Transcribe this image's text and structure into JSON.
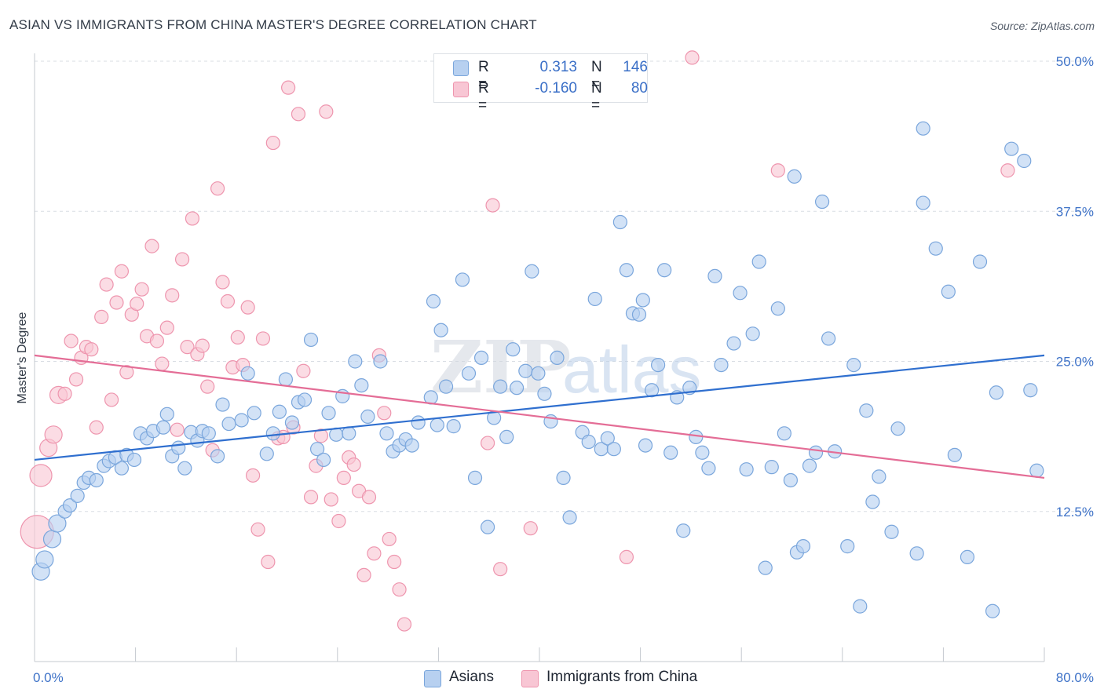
{
  "title": "ASIAN VS IMMIGRANTS FROM CHINA MASTER'S DEGREE CORRELATION CHART",
  "source": "Source: ZipAtlas.com",
  "watermark": {
    "zip": "ZIP",
    "atlas": "atlas"
  },
  "colors": {
    "blue_fill": "#b7d0f0",
    "blue_stroke": "#7aa6dc",
    "blue_line": "#2f6fcf",
    "pink_fill": "#f8c6d4",
    "pink_stroke": "#ee95ae",
    "pink_line": "#e46d96",
    "tick_text": "#3f73c8",
    "grid": "#d9dde3"
  },
  "legend": {
    "rows": [
      {
        "label": "R =",
        "r": "0.313",
        "n_label": "N =",
        "n": "146",
        "swatch": "blue"
      },
      {
        "label": "R =",
        "r": "-0.160",
        "n_label": "N =",
        "n": "80",
        "swatch": "pink"
      }
    ]
  },
  "bottom_legend": [
    {
      "label": "Asians",
      "swatch": "blue"
    },
    {
      "label": "Immigrants from China",
      "swatch": "pink"
    }
  ],
  "chart_data": {
    "type": "scatter",
    "title": "ASIAN VS IMMIGRANTS FROM CHINA MASTER'S DEGREE CORRELATION CHART",
    "xlabel": "",
    "ylabel": "Master's Degree",
    "xlim": [
      0,
      80
    ],
    "ylim": [
      0,
      50
    ],
    "x_tick_labels": [
      {
        "value": 0,
        "label": "0.0%"
      },
      {
        "value": 80,
        "label": "80.0%"
      }
    ],
    "y_tick_labels": [
      {
        "value": 12.5,
        "label": "12.5%"
      },
      {
        "value": 25,
        "label": "25.0%"
      },
      {
        "value": 37.5,
        "label": "37.5%"
      },
      {
        "value": 50,
        "label": "50.0%"
      }
    ],
    "grid": "horizontal dashed",
    "series": [
      {
        "name": "Asians",
        "color": "#b7d0f0",
        "trend": {
          "x": [
            0,
            80
          ],
          "y": [
            16.8,
            25.5
          ]
        },
        "points": [
          [
            0.5,
            7.5
          ],
          [
            0.8,
            8.5
          ],
          [
            1.4,
            10.2
          ],
          [
            1.8,
            11.5
          ],
          [
            2.4,
            12.5
          ],
          [
            2.8,
            13
          ],
          [
            3.4,
            13.8
          ],
          [
            3.9,
            14.9
          ],
          [
            4.3,
            15.3
          ],
          [
            4.9,
            15.1
          ],
          [
            5.5,
            16.3
          ],
          [
            5.9,
            16.7
          ],
          [
            6.4,
            17
          ],
          [
            6.9,
            16.1
          ],
          [
            7.3,
            17.2
          ],
          [
            7.9,
            16.8
          ],
          [
            8.4,
            19
          ],
          [
            8.9,
            18.6
          ],
          [
            9.4,
            19.2
          ],
          [
            10.2,
            19.5
          ],
          [
            10.5,
            20.6
          ],
          [
            10.9,
            17.1
          ],
          [
            11.4,
            17.8
          ],
          [
            11.9,
            16.1
          ],
          [
            12.4,
            19.1
          ],
          [
            12.9,
            18.4
          ],
          [
            13.3,
            19.2
          ],
          [
            13.8,
            19
          ],
          [
            14.5,
            17.1
          ],
          [
            14.9,
            21.4
          ],
          [
            15.4,
            19.8
          ],
          [
            16.4,
            20.1
          ],
          [
            16.9,
            24
          ],
          [
            17.4,
            20.7
          ],
          [
            18.4,
            17.3
          ],
          [
            18.9,
            19
          ],
          [
            19.4,
            20.8
          ],
          [
            19.9,
            23.5
          ],
          [
            20.4,
            19.9
          ],
          [
            20.9,
            21.6
          ],
          [
            21.4,
            21.8
          ],
          [
            21.9,
            26.8
          ],
          [
            22.4,
            17.7
          ],
          [
            22.9,
            16.8
          ],
          [
            23.3,
            20.7
          ],
          [
            23.9,
            18.9
          ],
          [
            24.4,
            22.1
          ],
          [
            24.9,
            19
          ],
          [
            25.4,
            25
          ],
          [
            25.9,
            23
          ],
          [
            26.4,
            20.4
          ],
          [
            27.4,
            25
          ],
          [
            27.9,
            19
          ],
          [
            28.4,
            17.5
          ],
          [
            28.9,
            18
          ],
          [
            29.4,
            18.5
          ],
          [
            29.9,
            18
          ],
          [
            30.4,
            19.9
          ],
          [
            31.4,
            22
          ],
          [
            31.9,
            19.7
          ],
          [
            31.6,
            30
          ],
          [
            32.2,
            27.6
          ],
          [
            32.6,
            22.9
          ],
          [
            33.2,
            19.6
          ],
          [
            33.9,
            31.8
          ],
          [
            34.4,
            24
          ],
          [
            34.9,
            15.3
          ],
          [
            35.4,
            25.3
          ],
          [
            35.9,
            11.2
          ],
          [
            36.4,
            20.3
          ],
          [
            36.9,
            22.9
          ],
          [
            37.4,
            18.7
          ],
          [
            37.9,
            26
          ],
          [
            38.2,
            22.8
          ],
          [
            38.9,
            24.2
          ],
          [
            39.4,
            32.5
          ],
          [
            39.9,
            24
          ],
          [
            40.4,
            22.3
          ],
          [
            40.9,
            20
          ],
          [
            41.4,
            25.3
          ],
          [
            41.9,
            15.3
          ],
          [
            42.4,
            12
          ],
          [
            43.4,
            19.1
          ],
          [
            43.9,
            18.3
          ],
          [
            44.4,
            30.2
          ],
          [
            44.9,
            17.7
          ],
          [
            45.4,
            18.6
          ],
          [
            45.9,
            17.7
          ],
          [
            46.4,
            36.6
          ],
          [
            46.9,
            32.6
          ],
          [
            47.4,
            29
          ],
          [
            47.9,
            28.9
          ],
          [
            48.4,
            18
          ],
          [
            48.9,
            22.6
          ],
          [
            49.4,
            24.7
          ],
          [
            49.9,
            32.6
          ],
          [
            50.4,
            17.4
          ],
          [
            50.9,
            22
          ],
          [
            51.4,
            10.9
          ],
          [
            51.9,
            22.8
          ],
          [
            52.4,
            18.7
          ],
          [
            52.9,
            17.4
          ],
          [
            53.4,
            16.1
          ],
          [
            53.9,
            32.1
          ],
          [
            54.4,
            24.7
          ],
          [
            55.4,
            26.5
          ],
          [
            55.9,
            30.7
          ],
          [
            56.4,
            16
          ],
          [
            56.9,
            27.3
          ],
          [
            57.4,
            33.3
          ],
          [
            57.9,
            7.8
          ],
          [
            58.4,
            16.2
          ],
          [
            58.9,
            29.4
          ],
          [
            59.4,
            19
          ],
          [
            59.9,
            15.1
          ],
          [
            60.4,
            9.1
          ],
          [
            60.9,
            9.6
          ],
          [
            61.4,
            16.3
          ],
          [
            61.9,
            17.4
          ],
          [
            62.4,
            38.3
          ],
          [
            62.9,
            26.9
          ],
          [
            63.4,
            17.5
          ],
          [
            64.4,
            9.6
          ],
          [
            64.9,
            24.7
          ],
          [
            65.4,
            4.6
          ],
          [
            66.4,
            13.3
          ],
          [
            66.9,
            15.4
          ],
          [
            67.9,
            10.8
          ],
          [
            68.4,
            19.4
          ],
          [
            69.9,
            9
          ],
          [
            70.4,
            38.2
          ],
          [
            70.4,
            44.4
          ],
          [
            71.4,
            34.4
          ],
          [
            72.4,
            30.8
          ],
          [
            72.9,
            17.2
          ],
          [
            73.9,
            8.7
          ],
          [
            74.9,
            33.3
          ],
          [
            75.9,
            4.2
          ],
          [
            76.2,
            22.4
          ],
          [
            77.4,
            42.7
          ],
          [
            78.4,
            41.7
          ],
          [
            78.9,
            22.6
          ],
          [
            79.4,
            15.9
          ],
          [
            65.9,
            20.9
          ],
          [
            60.2,
            40.4
          ],
          [
            48.2,
            30.1
          ]
        ]
      },
      {
        "name": "Immigrants from China",
        "color": "#f8c6d4",
        "trend": {
          "x": [
            0,
            80
          ],
          "y": [
            25.5,
            15.3
          ]
        },
        "points": [
          [
            0.2,
            10.8
          ],
          [
            0.5,
            15.5
          ],
          [
            1.1,
            17.8
          ],
          [
            1.5,
            18.9
          ],
          [
            1.9,
            22.2
          ],
          [
            2.4,
            22.3
          ],
          [
            2.9,
            26.7
          ],
          [
            3.3,
            23.5
          ],
          [
            3.7,
            25.3
          ],
          [
            4.1,
            26.2
          ],
          [
            4.5,
            26
          ],
          [
            4.9,
            19.5
          ],
          [
            5.3,
            28.7
          ],
          [
            5.7,
            31.4
          ],
          [
            6.1,
            21.8
          ],
          [
            6.5,
            29.9
          ],
          [
            6.9,
            32.5
          ],
          [
            7.3,
            24.1
          ],
          [
            7.7,
            28.9
          ],
          [
            8.1,
            29.8
          ],
          [
            8.5,
            31
          ],
          [
            8.9,
            27.1
          ],
          [
            9.3,
            34.6
          ],
          [
            9.7,
            26.7
          ],
          [
            10.1,
            24.8
          ],
          [
            10.5,
            27.8
          ],
          [
            10.9,
            30.5
          ],
          [
            11.3,
            19.3
          ],
          [
            11.7,
            33.5
          ],
          [
            12.1,
            26.2
          ],
          [
            12.5,
            36.9
          ],
          [
            12.9,
            25.6
          ],
          [
            13.3,
            26.3
          ],
          [
            13.7,
            22.9
          ],
          [
            14.1,
            17.6
          ],
          [
            14.5,
            39.4
          ],
          [
            14.9,
            31.6
          ],
          [
            15.3,
            30
          ],
          [
            15.7,
            24.5
          ],
          [
            16.1,
            27
          ],
          [
            16.5,
            24.7
          ],
          [
            16.9,
            29.5
          ],
          [
            17.3,
            15.5
          ],
          [
            17.7,
            11
          ],
          [
            18.1,
            26.9
          ],
          [
            18.5,
            8.3
          ],
          [
            18.9,
            43.2
          ],
          [
            19.3,
            18.6
          ],
          [
            19.7,
            18.7
          ],
          [
            20.1,
            47.8
          ],
          [
            20.5,
            19.5
          ],
          [
            20.9,
            45.6
          ],
          [
            21.3,
            24.2
          ],
          [
            21.9,
            13.7
          ],
          [
            22.3,
            16.3
          ],
          [
            22.7,
            18.8
          ],
          [
            23.1,
            45.8
          ],
          [
            23.5,
            13.5
          ],
          [
            24.1,
            11.7
          ],
          [
            24.5,
            15.3
          ],
          [
            24.9,
            17
          ],
          [
            25.3,
            16.4
          ],
          [
            25.7,
            14.2
          ],
          [
            26.1,
            7.2
          ],
          [
            26.5,
            13.7
          ],
          [
            26.9,
            9
          ],
          [
            27.3,
            25.5
          ],
          [
            27.7,
            20.7
          ],
          [
            28.1,
            10.2
          ],
          [
            28.5,
            8.3
          ],
          [
            28.9,
            6
          ],
          [
            29.3,
            3.1
          ],
          [
            35.9,
            18.2
          ],
          [
            36.3,
            38
          ],
          [
            36.9,
            7.7
          ],
          [
            39.3,
            11.1
          ],
          [
            46.9,
            8.7
          ],
          [
            58.9,
            40.9
          ],
          [
            77.1,
            40.9
          ],
          [
            52.1,
            50.3
          ]
        ]
      }
    ]
  }
}
